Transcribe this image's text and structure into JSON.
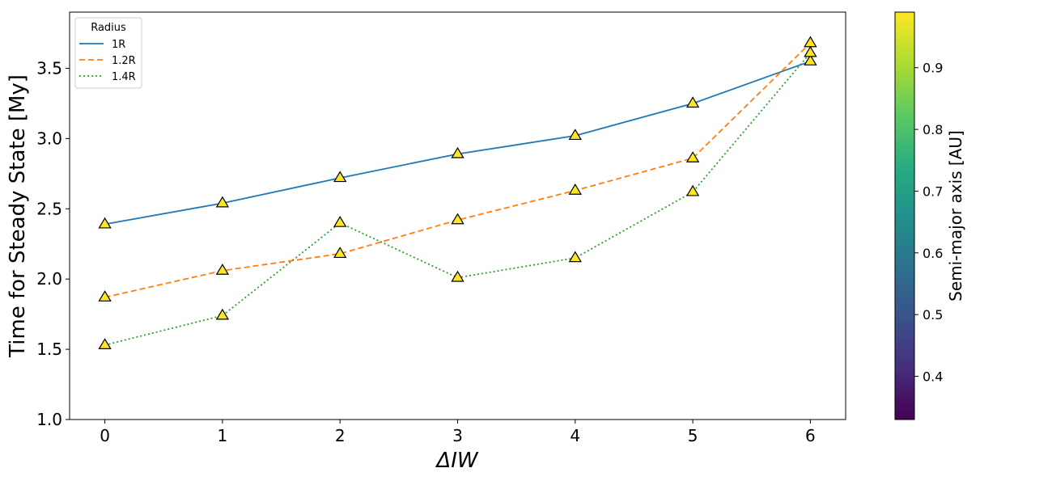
{
  "chart_data": {
    "type": "line",
    "x": [
      0,
      1,
      2,
      3,
      4,
      5,
      6
    ],
    "series": [
      {
        "name": "1R",
        "values": [
          2.39,
          2.54,
          2.72,
          2.89,
          3.02,
          3.25,
          3.55
        ],
        "color": "#1f77b4",
        "linestyle": "solid"
      },
      {
        "name": "1.2R",
        "values": [
          1.87,
          2.06,
          2.18,
          2.42,
          2.63,
          2.86,
          3.68
        ],
        "color": "#ff7f0e",
        "linestyle": "dashed"
      },
      {
        "name": "1.4R",
        "values": [
          1.53,
          1.74,
          2.4,
          2.01,
          2.15,
          2.62,
          3.61
        ],
        "color": "#2ca02c",
        "linestyle": "dotted"
      }
    ],
    "marker": {
      "shape": "triangle-up",
      "fill": "#fde725",
      "edge": "#000000"
    },
    "xlabel": "ΔIW",
    "ylabel": "Time for Steady State [My]",
    "xlim": [
      -0.3,
      6.3
    ],
    "ylim": [
      1.0,
      3.9
    ],
    "xticks": [
      "0",
      "1",
      "2",
      "3",
      "4",
      "5",
      "6"
    ],
    "yticks": [
      "1.0",
      "1.5",
      "2.0",
      "2.5",
      "3.0",
      "3.5"
    ],
    "grid": false,
    "legend": {
      "title": "Radius",
      "position": "top-left",
      "entries": [
        "1R",
        "1.2R",
        "1.4R"
      ]
    },
    "colorbar": {
      "label": "Semi-major axis [AU]",
      "colormap": "viridis",
      "range": [
        0.33,
        0.99
      ],
      "ticks": [
        "0.4",
        "0.5",
        "0.6",
        "0.7",
        "0.8",
        "0.9"
      ]
    }
  }
}
